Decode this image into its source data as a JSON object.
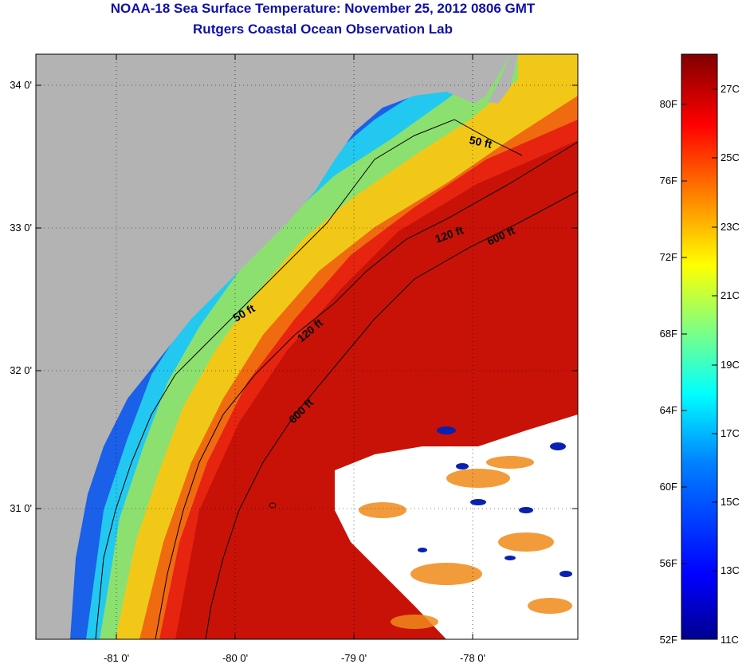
{
  "title": {
    "line1": "NOAA-18 Sea Surface Temperature:  November 25, 2012 0806 GMT",
    "line2": "Rutgers Coastal Ocean Observation Lab"
  },
  "map": {
    "lat_labels": [
      "34 0'",
      "33 0'",
      "32 0'",
      "31 0'"
    ],
    "lon_labels": [
      "-81 0'",
      "-80 0'",
      "-79 0'",
      "-78 0'"
    ],
    "contours": [
      {
        "label": "50 ft"
      },
      {
        "label": "120 ft"
      },
      {
        "label": "600 ft"
      },
      {
        "label": "50 ft"
      },
      {
        "label": "120 ft"
      },
      {
        "label": "600 ft"
      }
    ],
    "colors": {
      "land": "#b3b3b3",
      "cloud": "#ffffff",
      "contour": "#000000"
    }
  },
  "colorbar": {
    "fahrenheit_labels": [
      "80F",
      "76F",
      "72F",
      "68F",
      "64F",
      "60F",
      "56F",
      "52F"
    ],
    "celsius_labels": [
      "27C",
      "25C",
      "23C",
      "21C",
      "19C",
      "17C",
      "15C",
      "13C",
      "11C"
    ],
    "color_stops": [
      "#00008f",
      "#0000ff",
      "#0080ff",
      "#00ffff",
      "#80ff80",
      "#ffff00",
      "#ff8000",
      "#ff0000",
      "#800000"
    ]
  }
}
